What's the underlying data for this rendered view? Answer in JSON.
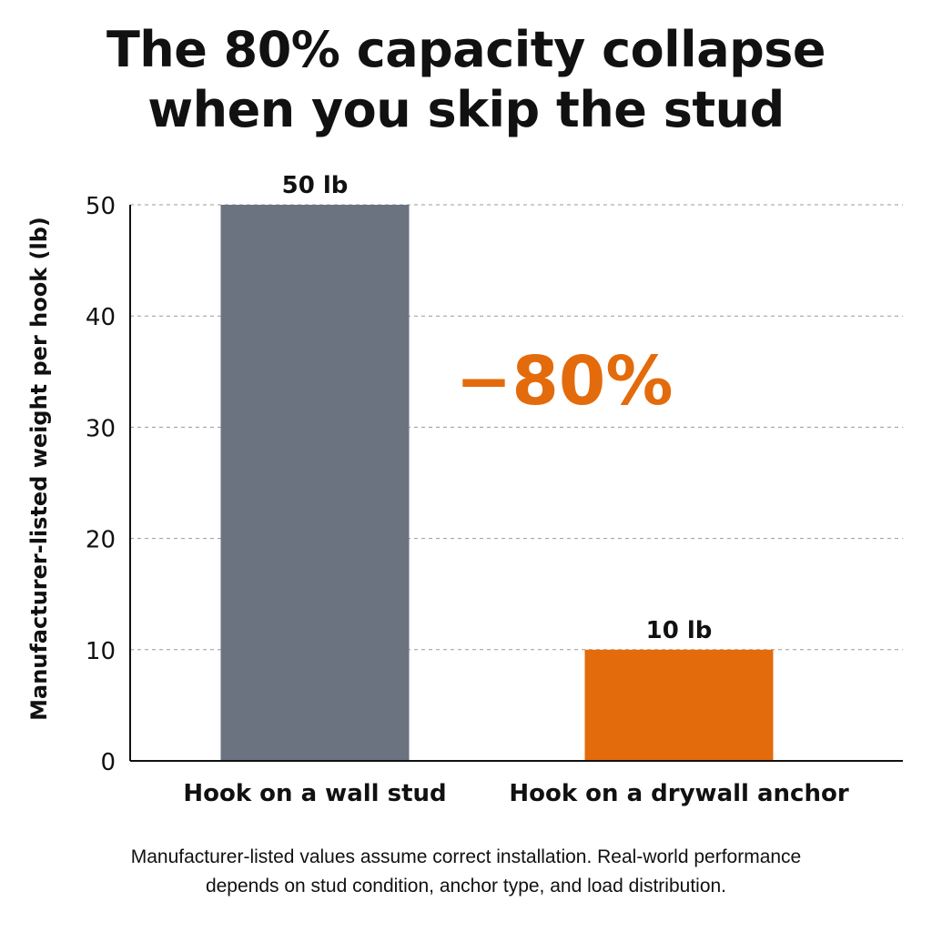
{
  "title": {
    "line1": "The 80% capacity collapse",
    "line2": "when you skip the stud"
  },
  "chart_data": {
    "type": "bar",
    "categories": [
      "Hook on a wall stud",
      "Hook on a drywall anchor"
    ],
    "values": [
      50,
      10
    ],
    "data_labels": [
      "50 lb",
      "10 lb"
    ],
    "colors": [
      "#6b7280",
      "#e36b0c"
    ],
    "ylabel": "Manufacturer-listed weight per hook (lb)",
    "xlabel": "",
    "ylim": [
      0,
      50
    ],
    "yticks": [
      0,
      10,
      20,
      30,
      40,
      50
    ],
    "grid": true,
    "legend": "none",
    "annotation": {
      "text": "−80%",
      "color": "#e36b0c"
    }
  },
  "footnote": {
    "line1": "Manufacturer-listed values assume correct installation. Real-world performance",
    "line2": "depends on stud condition, anchor type, and load distribution."
  }
}
